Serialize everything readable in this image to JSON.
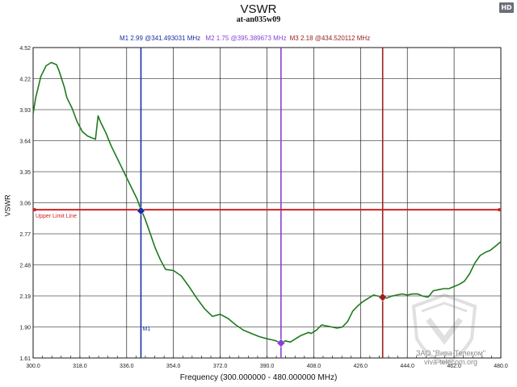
{
  "badge": "HD",
  "chart_data": {
    "type": "line",
    "title": "VSWR",
    "subtitle": "at-an035w09",
    "xlabel": "Frequency (300.000000 - 480.000000 MHz)",
    "ylabel": "VSWR",
    "xlim": [
      300,
      480
    ],
    "ylim": [
      1.61,
      4.52
    ],
    "x_ticks": [
      "300.0",
      "318.0",
      "336.0",
      "354.0",
      "372.0",
      "390.0",
      "408.0",
      "426.0",
      "444.0",
      "462.0",
      "480.0"
    ],
    "y_ticks": [
      "4.52",
      "4.22",
      "3.93",
      "3.64",
      "3.35",
      "3.06",
      "2.77",
      "2.48",
      "2.19",
      "1.90",
      "1.61"
    ],
    "grid": true,
    "series": [
      {
        "color": "#1e7a1e",
        "x": [
          300,
          301,
          303,
          305,
          307,
          309,
          310,
          312,
          313,
          315,
          317,
          319,
          321,
          323,
          324,
          325,
          326,
          328,
          330,
          332,
          334,
          336,
          338,
          340,
          341.5,
          343,
          345,
          347,
          349,
          351,
          354,
          357,
          360,
          363,
          366,
          369,
          372,
          375,
          378,
          381,
          384,
          387,
          390,
          392,
          393.5,
          395.4,
          397,
          399,
          401,
          403,
          405,
          406,
          407,
          409,
          411,
          413,
          415,
          417,
          419,
          421,
          423,
          425,
          427,
          429,
          431,
          434.5,
          436,
          438,
          440,
          442,
          444,
          446,
          448,
          450,
          452,
          454,
          456,
          458,
          460,
          462,
          464,
          466,
          468,
          470,
          472,
          474,
          476,
          478,
          480
        ],
        "y": [
          3.9,
          4.05,
          4.25,
          4.35,
          4.38,
          4.36,
          4.3,
          4.15,
          4.05,
          3.95,
          3.82,
          3.73,
          3.69,
          3.67,
          3.66,
          3.88,
          3.82,
          3.72,
          3.6,
          3.5,
          3.4,
          3.3,
          3.2,
          3.1,
          3.0,
          2.92,
          2.78,
          2.64,
          2.53,
          2.44,
          2.43,
          2.38,
          2.28,
          2.17,
          2.07,
          2.0,
          2.02,
          1.98,
          1.92,
          1.87,
          1.84,
          1.81,
          1.79,
          1.78,
          1.77,
          1.75,
          1.77,
          1.76,
          1.79,
          1.82,
          1.84,
          1.85,
          1.84,
          1.87,
          1.92,
          1.91,
          1.9,
          1.89,
          1.9,
          1.95,
          2.05,
          2.1,
          2.14,
          2.17,
          2.2,
          2.18,
          2.17,
          2.19,
          2.2,
          2.21,
          2.2,
          2.21,
          2.21,
          2.19,
          2.18,
          2.24,
          2.25,
          2.26,
          2.26,
          2.28,
          2.3,
          2.33,
          2.4,
          2.5,
          2.57,
          2.6,
          2.62,
          2.66,
          2.7
        ]
      }
    ],
    "limit_line": {
      "label": "Upper Limit Line",
      "y": 3.0,
      "color": "#d42020"
    },
    "markers": [
      {
        "name": "M1",
        "x": 341.493031,
        "y": 2.99,
        "color": "#1a2fa0",
        "readout": "M1  2.99 @341.493031 MHz",
        "label": "M1"
      },
      {
        "name": "M2",
        "x": 395.389673,
        "y": 1.75,
        "color": "#8a3fd6",
        "readout": "M2  1.75 @395.389673 MHz",
        "label": ""
      },
      {
        "name": "M3",
        "x": 434.520112,
        "y": 2.18,
        "color": "#9a2020",
        "readout": "M3  2.18 @434.520112 MHz",
        "label": ""
      }
    ]
  },
  "watermark": {
    "line1": "ЗАО \"Вива-Телеком\"",
    "line2": "viva-telecom.org"
  }
}
